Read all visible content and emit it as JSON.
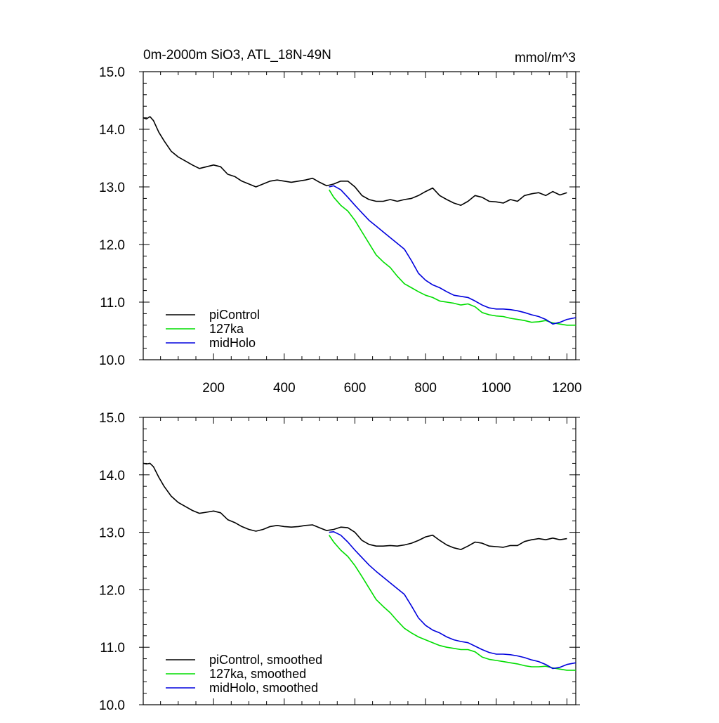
{
  "figure": {
    "title_left": "0m-2000m SiO3, ATL_18N-49N",
    "title_right": "mmol/m^3"
  },
  "colors": {
    "piControl": "#000000",
    "127ka": "#00dd00",
    "midHolo": "#0000dd"
  },
  "chart_data": [
    {
      "type": "line",
      "xlim": [
        1,
        1225
      ],
      "ylim": [
        10.0,
        15.0
      ],
      "x_ticks": [
        200,
        400,
        600,
        800,
        1000,
        1200
      ],
      "x_tick_labels": [
        "200",
        "400",
        "600",
        "800",
        "1000",
        "1200"
      ],
      "y_ticks": [
        10,
        11,
        12,
        13,
        14,
        15
      ],
      "y_tick_labels": [
        "10.0",
        "11.0",
        "12.0",
        "13.0",
        "14.0",
        "15.0"
      ],
      "legend_position": "bottom-left",
      "grid": false,
      "series": [
        {
          "name": "piControl",
          "color_key": "piControl",
          "x": [
            1,
            10,
            20,
            30,
            45,
            60,
            80,
            100,
            120,
            140,
            160,
            180,
            200,
            220,
            240,
            260,
            280,
            300,
            320,
            340,
            360,
            380,
            400,
            420,
            440,
            460,
            480,
            500,
            520,
            540,
            560,
            580,
            600,
            620,
            640,
            660,
            680,
            700,
            720,
            740,
            760,
            780,
            800,
            820,
            840,
            860,
            880,
            900,
            920,
            940,
            960,
            980,
            1000,
            1020,
            1040,
            1060,
            1080,
            1100,
            1120,
            1140,
            1160,
            1180,
            1200
          ],
          "y": [
            14.2,
            14.18,
            14.22,
            14.15,
            13.95,
            13.8,
            13.62,
            13.52,
            13.45,
            13.38,
            13.32,
            13.35,
            13.38,
            13.35,
            13.22,
            13.18,
            13.1,
            13.05,
            13.0,
            13.05,
            13.1,
            13.12,
            13.1,
            13.08,
            13.1,
            13.12,
            13.15,
            13.08,
            13.02,
            13.05,
            13.1,
            13.1,
            13.0,
            12.85,
            12.78,
            12.75,
            12.75,
            12.78,
            12.75,
            12.78,
            12.8,
            12.85,
            12.92,
            12.98,
            12.85,
            12.78,
            12.72,
            12.68,
            12.75,
            12.85,
            12.82,
            12.75,
            12.74,
            12.72,
            12.78,
            12.75,
            12.85,
            12.88,
            12.9,
            12.85,
            12.92,
            12.86,
            12.9
          ]
        },
        {
          "name": "127ka",
          "color_key": "127ka",
          "x": [
            527,
            540,
            560,
            580,
            600,
            620,
            640,
            660,
            680,
            700,
            720,
            740,
            760,
            780,
            800,
            820,
            840,
            860,
            880,
            900,
            920,
            940,
            960,
            980,
            1000,
            1020,
            1040,
            1060,
            1080,
            1100,
            1120,
            1140,
            1160,
            1180,
            1200,
            1225
          ],
          "y": [
            12.95,
            12.82,
            12.68,
            12.58,
            12.42,
            12.22,
            12.02,
            11.82,
            11.7,
            11.6,
            11.45,
            11.32,
            11.25,
            11.18,
            11.12,
            11.08,
            11.02,
            11.0,
            10.98,
            10.95,
            10.97,
            10.92,
            10.82,
            10.78,
            10.76,
            10.75,
            10.72,
            10.7,
            10.68,
            10.65,
            10.66,
            10.68,
            10.64,
            10.62,
            10.6,
            10.6
          ]
        },
        {
          "name": "midHolo",
          "color_key": "midHolo",
          "x": [
            527,
            540,
            560,
            580,
            600,
            620,
            640,
            660,
            680,
            700,
            720,
            740,
            760,
            780,
            800,
            820,
            840,
            860,
            880,
            900,
            920,
            940,
            960,
            980,
            1000,
            1020,
            1040,
            1060,
            1080,
            1100,
            1120,
            1140,
            1160,
            1180,
            1200,
            1225
          ],
          "y": [
            13.0,
            13.02,
            12.95,
            12.82,
            12.68,
            12.55,
            12.42,
            12.32,
            12.22,
            12.12,
            12.02,
            11.92,
            11.72,
            11.5,
            11.38,
            11.3,
            11.25,
            11.18,
            11.12,
            11.1,
            11.08,
            11.02,
            10.95,
            10.9,
            10.88,
            10.88,
            10.87,
            10.85,
            10.82,
            10.78,
            10.75,
            10.7,
            10.62,
            10.65,
            10.7,
            10.73
          ]
        }
      ]
    },
    {
      "type": "line",
      "xlim": [
        1,
        1225
      ],
      "ylim": [
        10.0,
        15.0
      ],
      "x_ticks": [
        200,
        400,
        600,
        800,
        1000,
        1200
      ],
      "y_ticks": [
        10,
        11,
        12,
        13,
        14,
        15
      ],
      "y_tick_labels": [
        "10.0",
        "11.0",
        "12.0",
        "13.0",
        "14.0",
        "15.0"
      ],
      "legend_position": "bottom-left",
      "grid": false,
      "series": [
        {
          "name": "piControl, smoothed",
          "color_key": "piControl",
          "x": [
            1,
            10,
            20,
            30,
            45,
            60,
            80,
            100,
            120,
            140,
            160,
            180,
            200,
            220,
            240,
            260,
            280,
            300,
            320,
            340,
            360,
            380,
            400,
            420,
            440,
            460,
            480,
            500,
            520,
            540,
            560,
            580,
            600,
            620,
            640,
            660,
            680,
            700,
            720,
            740,
            760,
            780,
            800,
            820,
            840,
            860,
            880,
            900,
            920,
            940,
            960,
            980,
            1000,
            1020,
            1040,
            1060,
            1080,
            1100,
            1120,
            1140,
            1160,
            1180,
            1200
          ],
          "y": [
            14.2,
            14.19,
            14.2,
            14.14,
            13.96,
            13.8,
            13.63,
            13.52,
            13.45,
            13.38,
            13.33,
            13.35,
            13.37,
            13.34,
            13.22,
            13.17,
            13.1,
            13.05,
            13.02,
            13.05,
            13.1,
            13.12,
            13.1,
            13.09,
            13.1,
            13.12,
            13.13,
            13.08,
            13.03,
            13.05,
            13.09,
            13.08,
            13.0,
            12.86,
            12.79,
            12.76,
            12.76,
            12.77,
            12.76,
            12.78,
            12.81,
            12.86,
            12.92,
            12.95,
            12.86,
            12.78,
            12.73,
            12.7,
            12.76,
            12.83,
            12.81,
            12.76,
            12.75,
            12.74,
            12.77,
            12.77,
            12.84,
            12.87,
            12.89,
            12.87,
            12.9,
            12.87,
            12.89
          ]
        },
        {
          "name": "127ka, smoothed",
          "color_key": "127ka",
          "x": [
            527,
            540,
            560,
            580,
            600,
            620,
            640,
            660,
            680,
            700,
            720,
            740,
            760,
            780,
            800,
            820,
            840,
            860,
            880,
            900,
            920,
            940,
            960,
            980,
            1000,
            1020,
            1040,
            1060,
            1080,
            1100,
            1120,
            1140,
            1160,
            1180,
            1200,
            1225
          ],
          "y": [
            12.95,
            12.83,
            12.69,
            12.58,
            12.42,
            12.23,
            12.03,
            11.83,
            11.71,
            11.6,
            11.46,
            11.33,
            11.25,
            11.18,
            11.13,
            11.08,
            11.03,
            11.0,
            10.98,
            10.96,
            10.96,
            10.92,
            10.83,
            10.79,
            10.77,
            10.75,
            10.73,
            10.71,
            10.68,
            10.66,
            10.66,
            10.67,
            10.64,
            10.62,
            10.6,
            10.6
          ]
        },
        {
          "name": "midHolo, smoothed",
          "color_key": "midHolo",
          "x": [
            527,
            540,
            560,
            580,
            600,
            620,
            640,
            660,
            680,
            700,
            720,
            740,
            760,
            780,
            800,
            820,
            840,
            860,
            880,
            900,
            920,
            940,
            960,
            980,
            1000,
            1020,
            1040,
            1060,
            1080,
            1100,
            1120,
            1140,
            1160,
            1180,
            1200,
            1225
          ],
          "y": [
            13.0,
            13.01,
            12.95,
            12.83,
            12.69,
            12.56,
            12.43,
            12.32,
            12.22,
            12.12,
            12.02,
            11.92,
            11.72,
            11.51,
            11.38,
            11.3,
            11.25,
            11.18,
            11.13,
            11.1,
            11.08,
            11.02,
            10.96,
            10.91,
            10.88,
            10.88,
            10.87,
            10.85,
            10.82,
            10.78,
            10.75,
            10.7,
            10.63,
            10.65,
            10.7,
            10.73
          ]
        }
      ]
    }
  ]
}
